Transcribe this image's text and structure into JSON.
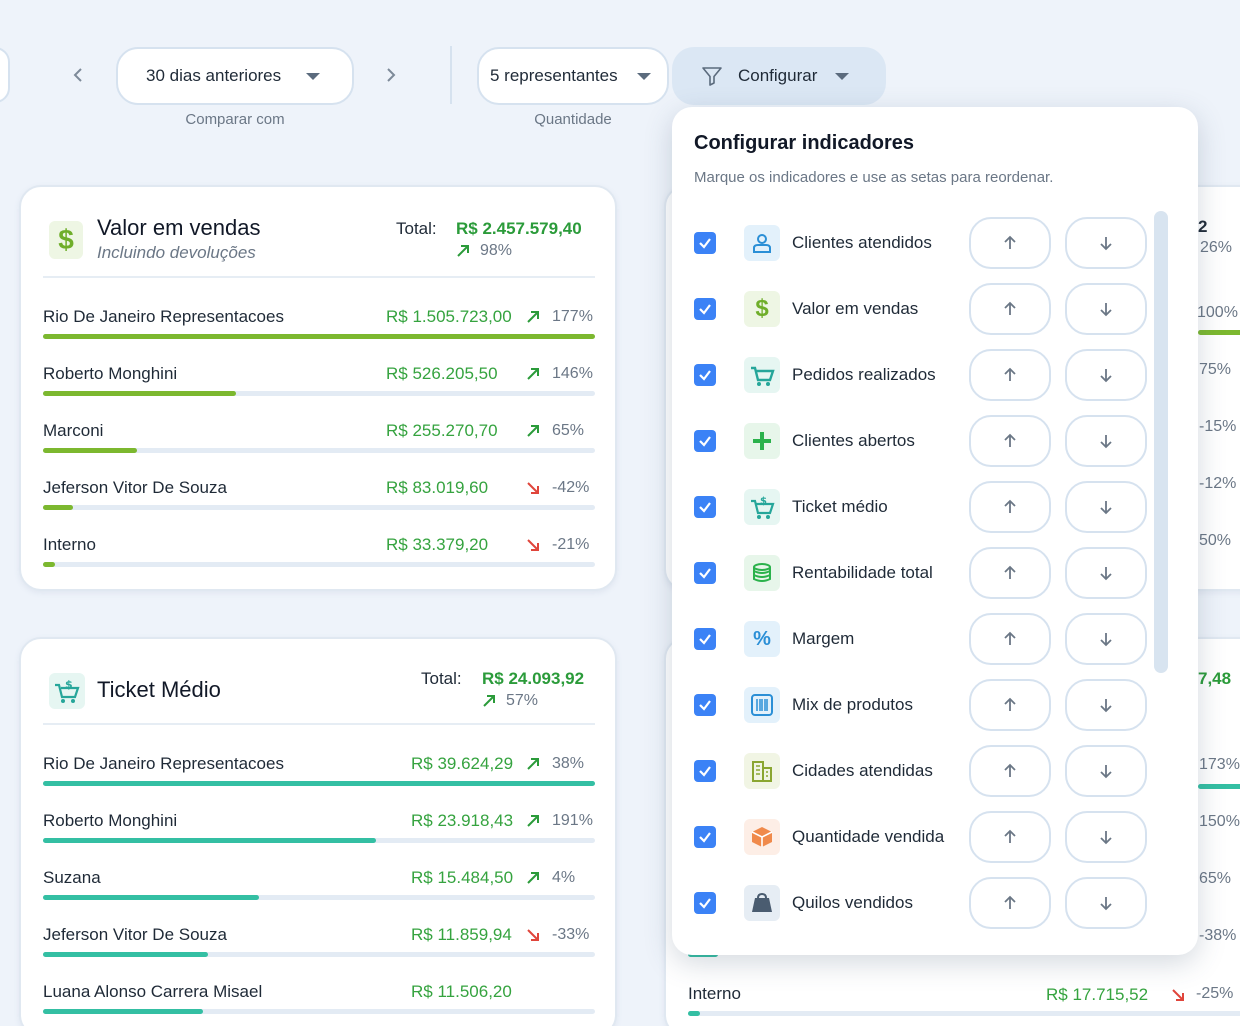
{
  "toolbar": {
    "compare_value": "30 dias anteriores",
    "compare_label": "Comparar com",
    "quantity_value": "5 representantes",
    "quantity_label": "Quantidade",
    "configure_label": "Configurar"
  },
  "colors": {
    "accent": "#3b82f6",
    "positive": "#2b9b3a",
    "negative": "#e0453b",
    "sales_bar": "#7cb82f",
    "ticket_bar": "#34bfa3"
  },
  "sales_card": {
    "title": "Valor em vendas",
    "subtitle": "Incluindo devoluções",
    "total_label": "Total:",
    "total_value": "R$ 2.457.579,40",
    "total_pct": "98%",
    "rows": [
      {
        "name": "Rio De Janeiro Representacoes",
        "value": "R$ 1.505.723,00",
        "trend": "up",
        "pct": "177%",
        "bar": 1.0
      },
      {
        "name": "Roberto Monghini",
        "value": "R$ 526.205,50",
        "trend": "up",
        "pct": "146%",
        "bar": 0.35
      },
      {
        "name": "Marconi",
        "value": "R$ 255.270,70",
        "trend": "up",
        "pct": "65%",
        "bar": 0.17
      },
      {
        "name": "Jeferson Vitor De Souza",
        "value": "R$ 83.019,60",
        "trend": "down",
        "pct": "-42%",
        "bar": 0.055
      },
      {
        "name": "Interno",
        "value": "R$ 33.379,20",
        "trend": "down",
        "pct": "-21%",
        "bar": 0.022
      }
    ]
  },
  "ticket_card": {
    "title": "Ticket Médio",
    "total_label": "Total:",
    "total_value": "R$ 24.093,92",
    "total_pct": "57%",
    "rows": [
      {
        "name": "Rio De Janeiro Representacoes",
        "value": "R$ 39.624,29",
        "trend": "up",
        "pct": "38%",
        "bar": 1.0
      },
      {
        "name": "Roberto Monghini",
        "value": "R$ 23.918,43",
        "trend": "up",
        "pct": "191%",
        "bar": 0.603
      },
      {
        "name": "Suzana",
        "value": "R$ 15.484,50",
        "trend": "up",
        "pct": "4%",
        "bar": 0.391
      },
      {
        "name": "Jeferson Vitor De Souza",
        "value": "R$ 11.859,94",
        "trend": "down",
        "pct": "-33%",
        "bar": 0.299
      },
      {
        "name": "Luana Alonso Carrera Misael",
        "value": "R$ 11.506,20",
        "trend": "",
        "pct": "",
        "bar": 0.29
      }
    ]
  },
  "right_card_top": {
    "number": "2",
    "pcts": [
      "26%",
      "100%",
      "75%",
      "-15%",
      "-12%",
      "50%"
    ]
  },
  "right_card_bottom": {
    "total_value": "7,48",
    "pcts": [
      "173%",
      "150%",
      "65%",
      "-38%"
    ],
    "last_row": {
      "name": "Interno",
      "value": "R$ 17.715,52",
      "trend": "down",
      "pct": "-25%"
    }
  },
  "popup": {
    "title": "Configurar indicadores",
    "subtitle": "Marque os indicadores e use as setas para reordenar.",
    "items": [
      {
        "label": "Clientes atendidos",
        "icon": "person-icon",
        "checked": true
      },
      {
        "label": "Valor em vendas",
        "icon": "dollar-icon",
        "checked": true
      },
      {
        "label": "Pedidos realizados",
        "icon": "cart-icon",
        "checked": true
      },
      {
        "label": "Clientes abertos",
        "icon": "plus-icon",
        "checked": true
      },
      {
        "label": "Ticket médio",
        "icon": "cart-dollar-icon",
        "checked": true
      },
      {
        "label": "Rentabilidade total",
        "icon": "coins-icon",
        "checked": true
      },
      {
        "label": "Margem",
        "icon": "percent-icon",
        "checked": true
      },
      {
        "label": "Mix de produtos",
        "icon": "barcode-icon",
        "checked": true
      },
      {
        "label": "Cidades atendidas",
        "icon": "building-icon",
        "checked": true
      },
      {
        "label": "Quantidade vendida",
        "icon": "box-icon",
        "checked": true
      },
      {
        "label": "Quilos vendidos",
        "icon": "weight-bag-icon",
        "checked": true
      }
    ]
  }
}
